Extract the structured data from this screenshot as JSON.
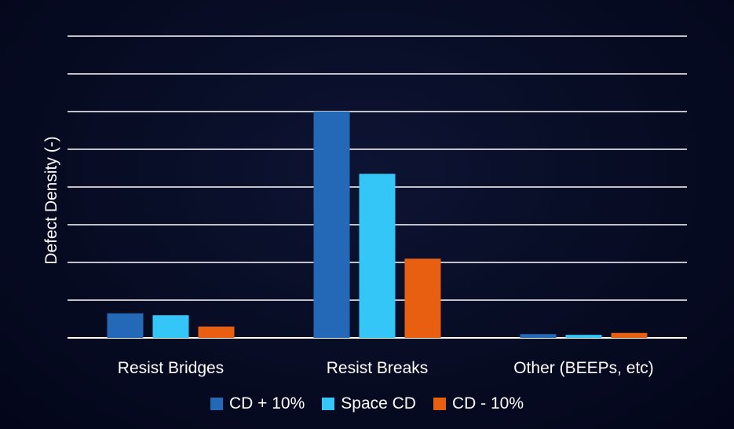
{
  "chart_data": {
    "type": "bar",
    "title": "",
    "xlabel": "",
    "ylabel": "Defect Density (-)",
    "ylim": [
      0,
      8
    ],
    "grid": true,
    "legend_position": "bottom",
    "categories": [
      "Resist Bridges",
      "Resist Breaks",
      "Other (BEEPs, etc)"
    ],
    "series": [
      {
        "name": "CD + 10%",
        "color": "#2469b8",
        "values": [
          0.65,
          6.0,
          0.1
        ]
      },
      {
        "name": "Space CD",
        "color": "#33c6f7",
        "values": [
          0.6,
          4.35,
          0.08
        ]
      },
      {
        "name": "CD - 10%",
        "color": "#e85f12",
        "values": [
          0.3,
          2.1,
          0.13
        ]
      }
    ]
  }
}
